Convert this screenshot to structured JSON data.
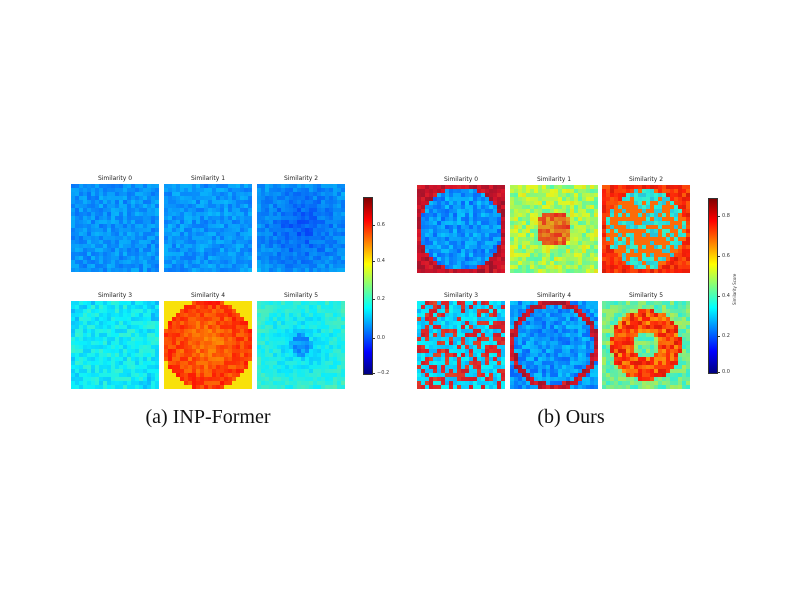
{
  "left_panel": {
    "caption": "(a) INP-Former",
    "tiles": [
      {
        "title": "Similarity 0",
        "pattern": "uniform-blue",
        "dominant_color": "#2a63e6"
      },
      {
        "title": "Similarity 1",
        "pattern": "uniform-blue",
        "dominant_color": "#2f72ea"
      },
      {
        "title": "Similarity 2",
        "pattern": "dark-blue-center",
        "dominant_color": "#1f4fd8"
      },
      {
        "title": "Similarity 3",
        "pattern": "light-cyan",
        "dominant_color": "#3fb8f0"
      },
      {
        "title": "Similarity 4",
        "pattern": "hot-red-orange",
        "dominant_color": "#ee5a1a"
      },
      {
        "title": "Similarity 5",
        "pattern": "light-blue-dark-center",
        "dominant_color": "#3d9cee"
      }
    ],
    "colorbar": {
      "ticks": [
        "0.6",
        "0.4",
        "0.2",
        "0.0",
        "−0.2"
      ],
      "label": ""
    }
  },
  "right_panel": {
    "caption": "(b) Ours",
    "tiles": [
      {
        "title": "Similarity 0",
        "pattern": "blue-with-red-rim",
        "dominant_color": "#2f6be8"
      },
      {
        "title": "Similarity 1",
        "pattern": "yellow-cyan-red-center",
        "dominant_color": "#6ad3a8"
      },
      {
        "title": "Similarity 2",
        "pattern": "red-ring-web",
        "dominant_color": "#f0a030"
      },
      {
        "title": "Similarity 3",
        "pattern": "red-yellow-web",
        "dominant_color": "#3fb0e8"
      },
      {
        "title": "Similarity 4",
        "pattern": "blue-with-red-ring",
        "dominant_color": "#2f74ea"
      },
      {
        "title": "Similarity 5",
        "pattern": "red-orange-ring",
        "dominant_color": "#f09a30"
      }
    ],
    "colorbar": {
      "ticks": [
        "0.8",
        "0.6",
        "0.4",
        "0.2",
        "0.0"
      ],
      "label": "Similarity Score"
    }
  },
  "colormap": [
    "#00007f",
    "#0000ff",
    "#007fff",
    "#00ffff",
    "#7fff7f",
    "#ffff00",
    "#ff7f00",
    "#ff0000",
    "#7f0000"
  ]
}
